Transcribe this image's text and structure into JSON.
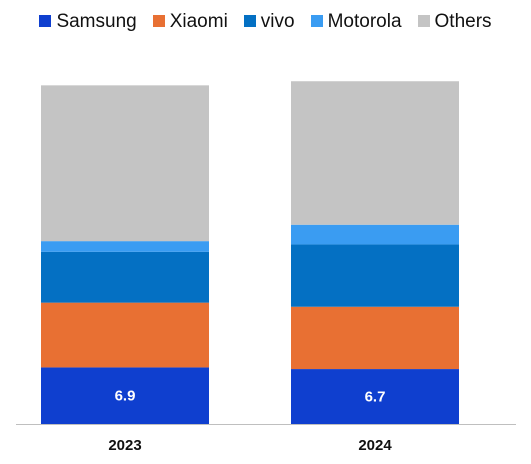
{
  "chart_data": {
    "type": "bar",
    "stacked": true,
    "legend_position": "top",
    "grid": false,
    "categories": [
      "2023",
      "2024"
    ],
    "series": [
      {
        "name": "Samsung",
        "color": "#0f3fcf",
        "values": [
          6.9,
          6.7
        ],
        "labels": [
          "6.9",
          "6.7"
        ]
      },
      {
        "name": "Xiaomi",
        "color": "#e87033",
        "values": [
          7.9,
          7.6
        ],
        "labels": [
          "",
          ""
        ]
      },
      {
        "name": "vivo",
        "color": "#0470c3",
        "values": [
          6.2,
          7.6
        ],
        "labels": [
          "",
          ""
        ]
      },
      {
        "name": "Motorola",
        "color": "#3a9cf2",
        "values": [
          1.3,
          2.4
        ],
        "labels": [
          "",
          ""
        ]
      },
      {
        "name": "Others",
        "color": "#c4c4c4",
        "values": [
          19.0,
          17.5
        ],
        "labels": [
          "",
          ""
        ]
      }
    ],
    "ylim": [
      0,
      43
    ],
    "y_axis_visible": false,
    "xlabel": "",
    "ylabel": "",
    "title": ""
  }
}
